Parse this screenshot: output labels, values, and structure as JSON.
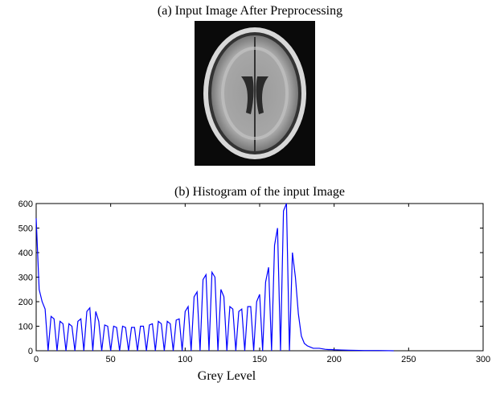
{
  "image_panel": {
    "title": "(a) Input Image After Preprocessing"
  },
  "chart_data": {
    "type": "line",
    "title": "(b) Histogram of the input Image",
    "x_label": "Grey Level",
    "x": [
      0,
      2,
      4,
      6,
      8,
      10,
      12,
      14,
      16,
      18,
      20,
      22,
      24,
      26,
      28,
      30,
      32,
      34,
      36,
      38,
      40,
      42,
      44,
      46,
      48,
      50,
      52,
      54,
      56,
      58,
      60,
      62,
      64,
      66,
      68,
      70,
      72,
      74,
      76,
      78,
      80,
      82,
      84,
      86,
      88,
      90,
      92,
      94,
      96,
      98,
      100,
      102,
      104,
      106,
      108,
      110,
      112,
      114,
      116,
      118,
      120,
      122,
      124,
      126,
      128,
      130,
      132,
      134,
      136,
      138,
      140,
      142,
      144,
      146,
      148,
      150,
      152,
      154,
      156,
      158,
      160,
      162,
      164,
      166,
      168,
      170,
      172,
      174,
      176,
      178,
      180,
      182,
      184,
      186,
      188,
      190,
      192,
      194,
      196,
      198,
      200,
      205,
      210,
      220,
      230,
      240
    ],
    "values": [
      540,
      250,
      200,
      170,
      0,
      140,
      130,
      0,
      120,
      110,
      0,
      110,
      100,
      0,
      120,
      130,
      0,
      160,
      175,
      0,
      160,
      120,
      0,
      105,
      100,
      0,
      100,
      95,
      0,
      100,
      95,
      0,
      95,
      95,
      0,
      100,
      100,
      0,
      105,
      110,
      0,
      120,
      110,
      0,
      120,
      110,
      0,
      125,
      130,
      0,
      160,
      180,
      0,
      220,
      240,
      0,
      290,
      310,
      0,
      320,
      300,
      0,
      250,
      220,
      0,
      180,
      170,
      0,
      160,
      170,
      0,
      180,
      180,
      0,
      200,
      230,
      0,
      280,
      340,
      0,
      430,
      500,
      0,
      570,
      600,
      0,
      400,
      300,
      150,
      60,
      30,
      20,
      15,
      10,
      10,
      10,
      8,
      6,
      5,
      5,
      4,
      3,
      2,
      1,
      1,
      0
    ],
    "color": "#0000ff",
    "xlim": [
      0,
      300
    ],
    "xticks": [
      0,
      50,
      100,
      150,
      200,
      250,
      300
    ],
    "ylim": [
      0,
      600
    ],
    "yticks": [
      0,
      100,
      200,
      300,
      400,
      500,
      600
    ]
  }
}
